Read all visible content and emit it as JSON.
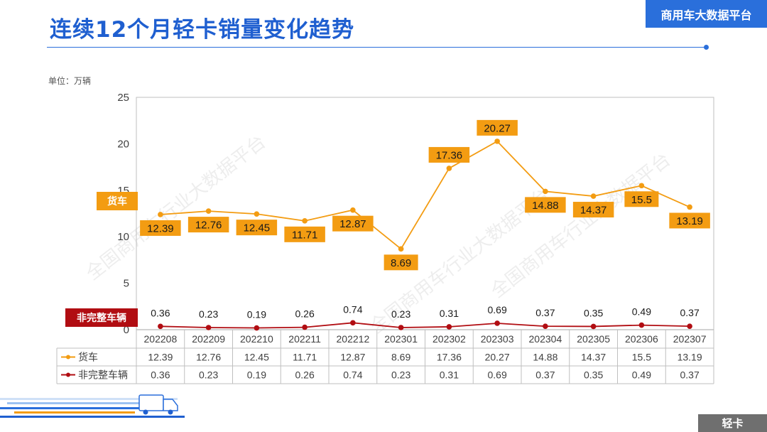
{
  "header": {
    "title": "连续12个月轻卡销量变化趋势",
    "brand": "商用车大数据平台"
  },
  "unit_label": "单位：万辆",
  "category_tag": "轻卡",
  "watermarks": [
    "全国商用车行业大数据平台",
    "全国商用车行业大数据平台",
    "全国商用车行业大数据平台"
  ],
  "colors": {
    "accent": "#2a6fdb",
    "truck": "#f39c12",
    "chassis": "#b10d12",
    "category_tag": "#6f6f6f"
  },
  "chart_data": {
    "type": "line",
    "title": "连续12个月轻卡销量变化趋势",
    "ylabel": "单位：万辆",
    "ylim": [
      0,
      25
    ],
    "yticks": [
      0,
      5,
      10,
      15,
      20,
      25
    ],
    "categories": [
      "202208",
      "202209",
      "202210",
      "202211",
      "202212",
      "202301",
      "202302",
      "202303",
      "202304",
      "202305",
      "202306",
      "202307"
    ],
    "series": [
      {
        "name": "货车",
        "tag": "货车",
        "values": [
          12.39,
          12.76,
          12.45,
          11.71,
          12.87,
          8.69,
          17.36,
          20.27,
          14.88,
          14.37,
          15.5,
          13.19
        ],
        "labels": [
          "12.39",
          "12.76",
          "12.45",
          "11.71",
          "12.87",
          "8.69",
          "17.36",
          "20.27",
          "14.88",
          "14.37",
          "15.5",
          "13.19"
        ],
        "color": "#f39c12"
      },
      {
        "name": "非完整车辆",
        "tag": "非完整车辆",
        "values": [
          0.36,
          0.23,
          0.19,
          0.26,
          0.74,
          0.23,
          0.31,
          0.69,
          0.37,
          0.35,
          0.49,
          0.37
        ],
        "labels": [
          "0.36",
          "0.23",
          "0.19",
          "0.26",
          "0.74",
          "0.23",
          "0.31",
          "0.69",
          "0.37",
          "0.35",
          "0.49",
          "0.37"
        ],
        "color": "#b10d12"
      }
    ],
    "data_table": true,
    "grid": false
  }
}
